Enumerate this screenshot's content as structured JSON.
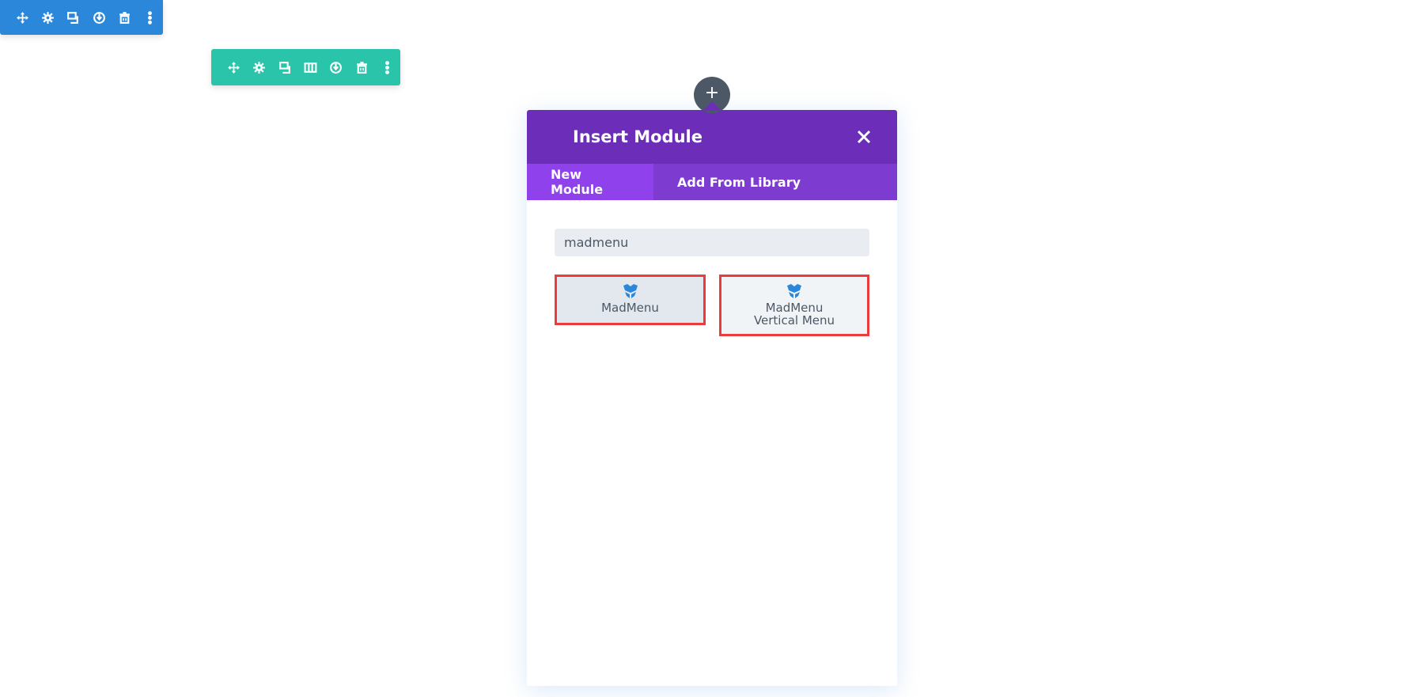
{
  "row_toolbar": {
    "color": "#2b87da",
    "icons": [
      "move-icon",
      "gear-icon",
      "duplicate-icon",
      "power-icon",
      "trash-icon",
      "more-icon"
    ]
  },
  "section_toolbar": {
    "color": "#29c4a9",
    "icons": [
      "move-icon",
      "gear-icon",
      "duplicate-icon",
      "columns-icon",
      "power-icon",
      "trash-icon",
      "more-icon"
    ]
  },
  "add_button": {
    "label": "+"
  },
  "modal": {
    "title": "Insert Module",
    "header_color": "#6c2eb9",
    "tabs": [
      {
        "label": "New Module",
        "active": true
      },
      {
        "label": "Add From Library",
        "active": false
      }
    ],
    "search": {
      "value": "madmenu"
    },
    "modules": [
      {
        "label": "MadMenu",
        "icon": "madmenu-logo-icon"
      },
      {
        "label": "MadMenu Vertical Menu",
        "icon": "madmenu-logo-icon"
      }
    ]
  }
}
